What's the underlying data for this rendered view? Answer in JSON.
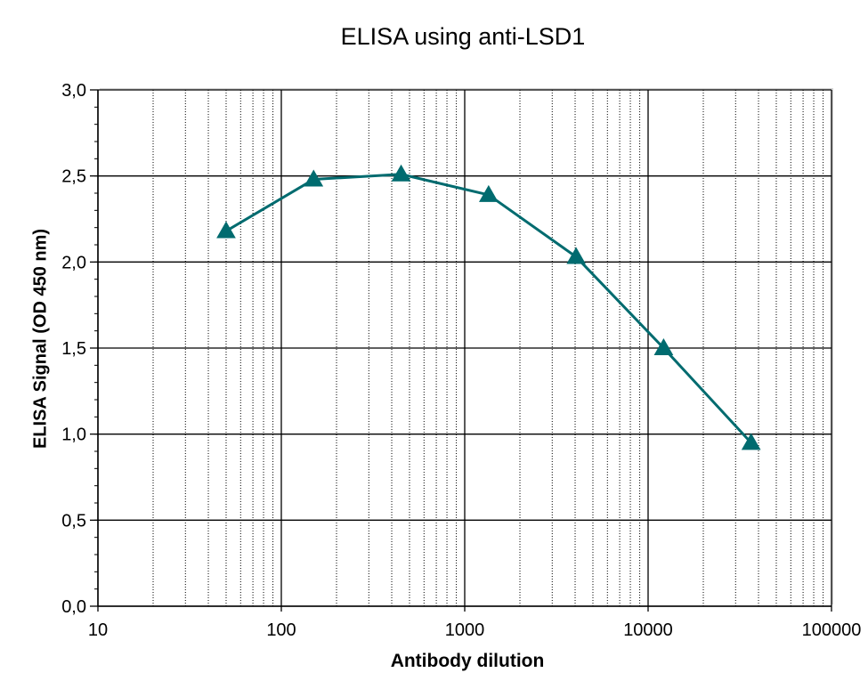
{
  "chart_data": {
    "type": "line",
    "title": "ELISA using anti-LSD1",
    "xlabel": "Antibody dilution",
    "ylabel": "ELISA Signal (OD 450 nm)",
    "xscale": "log",
    "xlim": [
      10,
      100000
    ],
    "ylim": [
      0,
      3
    ],
    "grid": true,
    "x_tick_labels": [
      "10",
      "100",
      "1000",
      "10000",
      "100000"
    ],
    "y_tick_labels": [
      "0,0",
      "0,5",
      "1,0",
      "1,5",
      "2,0",
      "2,5",
      "3,0"
    ],
    "series": [
      {
        "marker": "triangle",
        "color": "#006B6F",
        "x": [
          50,
          150,
          450,
          1350,
          4050,
          12150,
          36450
        ],
        "y": [
          2.18,
          2.48,
          2.51,
          2.39,
          2.03,
          1.5,
          0.95
        ]
      }
    ]
  }
}
